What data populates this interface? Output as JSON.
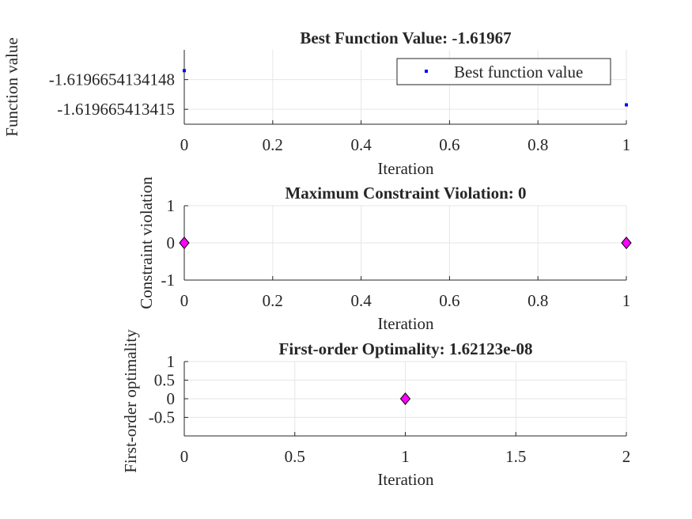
{
  "chart_data": [
    {
      "type": "scatter",
      "title": "Best Function Value: -1.61967",
      "xlabel": "Iteration",
      "ylabel": "Function value",
      "xlim": [
        0,
        1
      ],
      "ylim": [
        -1.6196654134151,
        -1.6196654134146
      ],
      "xticks": [
        0,
        0.2,
        0.4,
        0.6,
        0.8,
        1
      ],
      "xtick_labels": [
        "0",
        "0.2",
        "0.4",
        "0.6",
        "0.8",
        "1"
      ],
      "yticks": [
        -1.619665413415,
        -1.6196654134148
      ],
      "ytick_labels": [
        "-1.619665413415",
        "-1.6196654134148"
      ],
      "grid": true,
      "legend": {
        "position": "top-right",
        "entries": [
          "Best function value"
        ]
      },
      "marker_color": "#0000ff",
      "series": [
        {
          "name": "Best function value",
          "x": [
            0,
            1
          ],
          "y": [
            -1.61966541341474,
            -1.61966541341497
          ]
        }
      ]
    },
    {
      "type": "scatter",
      "title": "Maximum Constraint Violation: 0",
      "xlabel": "Iteration",
      "ylabel": "Constraint violation",
      "xlim": [
        0,
        1
      ],
      "ylim": [
        -1,
        1
      ],
      "xticks": [
        0,
        0.2,
        0.4,
        0.6,
        0.8,
        1
      ],
      "xtick_labels": [
        "0",
        "0.2",
        "0.4",
        "0.6",
        "0.8",
        "1"
      ],
      "yticks": [
        -1,
        0,
        1
      ],
      "ytick_labels": [
        "-1",
        "0",
        "1"
      ],
      "grid": true,
      "marker_color": "#ff00ff",
      "series": [
        {
          "x": [
            0,
            1
          ],
          "y": [
            0,
            0
          ]
        }
      ]
    },
    {
      "type": "scatter",
      "title": "First-order Optimality: 1.62123e-08",
      "xlabel": "Iteration",
      "ylabel": "First-order optimality",
      "xlim": [
        0,
        2
      ],
      "ylim": [
        -1,
        1
      ],
      "xticks": [
        0,
        0.5,
        1,
        1.5,
        2
      ],
      "xtick_labels": [
        "0",
        "0.5",
        "1",
        "1.5",
        "2"
      ],
      "yticks": [
        -0.5,
        0,
        0.5,
        1
      ],
      "ytick_labels": [
        "-0.5",
        "0",
        "0.5",
        "1"
      ],
      "grid": true,
      "marker_color": "#ff00ff",
      "series": [
        {
          "x": [
            1
          ],
          "y": [
            1.62123e-08
          ]
        }
      ]
    }
  ]
}
